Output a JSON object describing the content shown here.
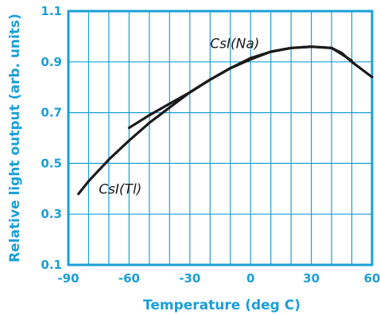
{
  "colors": {
    "frame": "#1a9fd8",
    "grid": "#1a9fd8",
    "ticks": "#1a9fd8",
    "curve": "#1a1a1a",
    "annotation": "#1a1a1a"
  },
  "chart_data": {
    "type": "line",
    "xlabel": "Temperature (deg C)",
    "ylabel": "Relative light output (arb. units)",
    "xlim": [
      -90,
      60
    ],
    "ylim": [
      0.1,
      1.1
    ],
    "xticks": [
      -90,
      -60,
      -30,
      0,
      30,
      60
    ],
    "xtick_labels": [
      "-90",
      "-60",
      "-30",
      "0",
      "30",
      "60"
    ],
    "yticks": [
      0.1,
      0.3,
      0.5,
      0.7,
      0.9,
      1.1
    ],
    "ytick_labels": [
      "0.1",
      "0.3",
      "0.5",
      "0.7",
      "0.9",
      "1.1"
    ],
    "grid": {
      "x_step": 10,
      "y_step": 0.2
    },
    "annotations": [
      {
        "text": "CsI(Na)",
        "x": -20,
        "y": 0.955
      },
      {
        "text": "CsI(Tl)",
        "x": -75,
        "y": 0.38
      }
    ],
    "series": [
      {
        "x": [
          -85,
          -80,
          -70,
          -60,
          -50,
          -40,
          -30,
          -20,
          -10,
          0,
          10,
          20,
          30,
          40,
          45,
          50,
          55,
          60
        ],
        "y": [
          0.38,
          0.43,
          0.515,
          0.59,
          0.66,
          0.72,
          0.78,
          0.83,
          0.875,
          0.91,
          0.94,
          0.955,
          0.96,
          0.955,
          0.935,
          0.9,
          0.87,
          0.84
        ]
      },
      {
        "x": [
          -60,
          -50,
          -40,
          -30,
          -20,
          -10,
          0,
          10,
          20,
          30,
          40,
          45,
          50
        ],
        "y": [
          0.64,
          0.69,
          0.735,
          0.78,
          0.83,
          0.875,
          0.915,
          0.94,
          0.955,
          0.96,
          0.955,
          0.93,
          0.905
        ]
      }
    ]
  }
}
